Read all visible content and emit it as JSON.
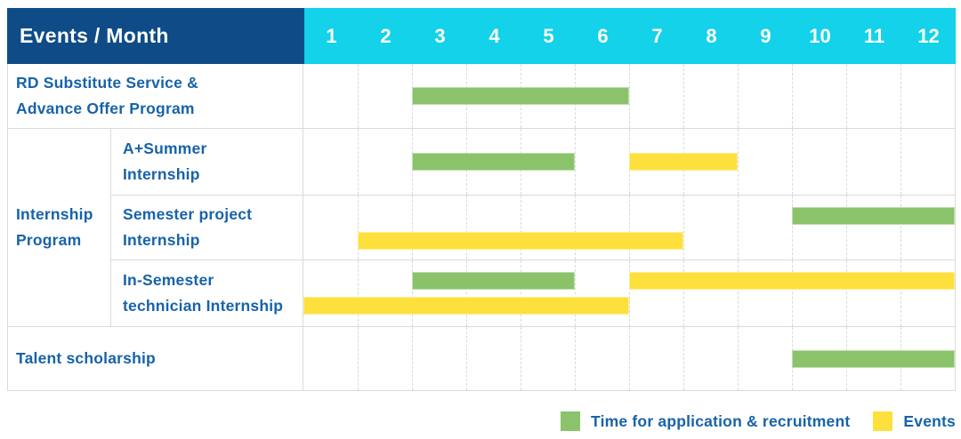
{
  "header": {
    "title": "Events / Month",
    "months": [
      "1",
      "2",
      "3",
      "4",
      "5",
      "6",
      "7",
      "8",
      "9",
      "10",
      "11",
      "12"
    ]
  },
  "group": {
    "label": "Internship Program",
    "label_lines": [
      "Internship",
      "Program"
    ]
  },
  "rows": [
    {
      "label": "RD Substitute Service & Advance Offer Program",
      "label_lines": [
        "RD Substitute Service &",
        "Advance Offer Program"
      ]
    },
    {
      "label": "A+Summer Internship",
      "label_lines": [
        "A+Summer",
        "Internship"
      ]
    },
    {
      "label": "Semester project Internship",
      "label_lines": [
        "Semester project",
        "Internship"
      ]
    },
    {
      "label": "In-Semester technician Internship",
      "label_lines": [
        "In-Semester",
        "technician Internship"
      ]
    },
    {
      "label": "Talent scholarship",
      "label_lines": [
        "Talent scholarship"
      ]
    }
  ],
  "legend": {
    "items": [
      {
        "key": "application",
        "label": "Time for application & recruitment",
        "color": "#8BC36B"
      },
      {
        "key": "events",
        "label": "Events",
        "color": "#FDE03C"
      }
    ]
  },
  "colors": {
    "header_bg": "#0F4C87",
    "months_bg": "#13D2E9",
    "label_text": "#1763A9",
    "grid_line": "#DBDBDB",
    "bar_green": "#8BC36B",
    "bar_yellow": "#FDE03C"
  },
  "chart_data": {
    "type": "bar",
    "subtype": "gantt",
    "title": "Events / Month",
    "x_unit": "month",
    "x_range": [
      1,
      12
    ],
    "x_ticks": [
      "1",
      "2",
      "3",
      "4",
      "5",
      "6",
      "7",
      "8",
      "9",
      "10",
      "11",
      "12"
    ],
    "legend_position": "bottom-right",
    "grid": "dashed-vertical",
    "series_legend": [
      "Time for application & recruitment",
      "Events"
    ],
    "rows": [
      {
        "group": null,
        "label": "RD Substitute Service & Advance Offer Program",
        "bars": [
          {
            "series": "application",
            "start": 3,
            "end": 6,
            "lane": "middle"
          }
        ]
      },
      {
        "group": "Internship Program",
        "label": "A+Summer Internship",
        "bars": [
          {
            "series": "application",
            "start": 3,
            "end": 5,
            "lane": "middle"
          },
          {
            "series": "events",
            "start": 7,
            "end": 8,
            "lane": "middle"
          }
        ]
      },
      {
        "group": "Internship Program",
        "label": "Semester project Internship",
        "bars": [
          {
            "series": "application",
            "start": 10,
            "end": 12,
            "lane": "top"
          },
          {
            "series": "events",
            "start": 2,
            "end": 7,
            "lane": "bottom"
          }
        ]
      },
      {
        "group": "Internship Program",
        "label": "In-Semester technician Internship",
        "bars": [
          {
            "series": "application",
            "start": 3,
            "end": 5,
            "lane": "top"
          },
          {
            "series": "events",
            "start": 7,
            "end": 12,
            "lane": "top"
          },
          {
            "series": "events",
            "start": 1,
            "end": 6,
            "lane": "bottom"
          }
        ]
      },
      {
        "group": null,
        "label": "Talent scholarship",
        "bars": [
          {
            "series": "application",
            "start": 10,
            "end": 12,
            "lane": "middle"
          }
        ]
      }
    ]
  }
}
